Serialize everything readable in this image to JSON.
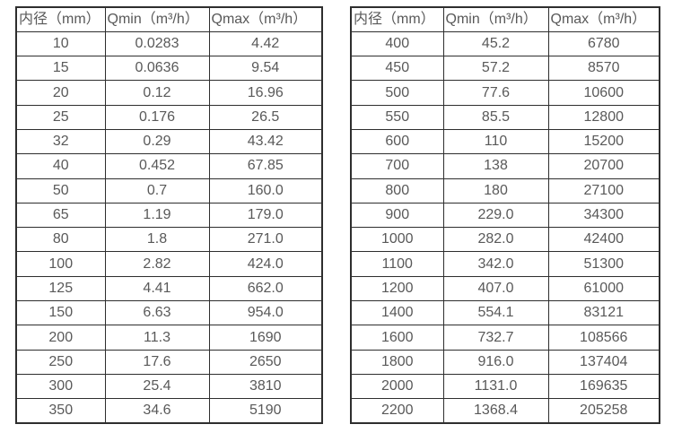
{
  "page": {
    "background": "#ffffff",
    "border_color": "#2e2e2e",
    "text_color": "#595959"
  },
  "tables": [
    {
      "name": "flow-table-small-diameters",
      "headers": [
        "内径（mm）",
        "Qmin（m³/h）",
        "Qmax（m³/h）"
      ],
      "rows": [
        [
          "10",
          "0.0283",
          "4.42"
        ],
        [
          "15",
          "0.0636",
          "9.54"
        ],
        [
          "20",
          "0.12",
          "16.96"
        ],
        [
          "25",
          "0.176",
          "26.5"
        ],
        [
          "32",
          "0.29",
          "43.42"
        ],
        [
          "40",
          "0.452",
          "67.85"
        ],
        [
          "50",
          "0.7",
          "160.0"
        ],
        [
          "65",
          "1.19",
          "179.0"
        ],
        [
          "80",
          "1.8",
          "271.0"
        ],
        [
          "100",
          "2.82",
          "424.0"
        ],
        [
          "125",
          "4.41",
          "662.0"
        ],
        [
          "150",
          "6.63",
          "954.0"
        ],
        [
          "200",
          "11.3",
          "1690"
        ],
        [
          "250",
          "17.6",
          "2650"
        ],
        [
          "300",
          "25.4",
          "3810"
        ],
        [
          "350",
          "34.6",
          "5190"
        ]
      ]
    },
    {
      "name": "flow-table-large-diameters",
      "headers": [
        "内径（mm）",
        "Qmin（m³/h）",
        "Qmax（m³/h）"
      ],
      "rows": [
        [
          "400",
          "45.2",
          "6780"
        ],
        [
          "450",
          "57.2",
          "8570"
        ],
        [
          "500",
          "77.6",
          "10600"
        ],
        [
          "550",
          "85.5",
          "12800"
        ],
        [
          "600",
          "110",
          "15200"
        ],
        [
          "700",
          "138",
          "20700"
        ],
        [
          "800",
          "180",
          "27100"
        ],
        [
          "900",
          "229.0",
          "34300"
        ],
        [
          "1000",
          "282.0",
          "42400"
        ],
        [
          "1100",
          "342.0",
          "51300"
        ],
        [
          "1200",
          "407.0",
          "61000"
        ],
        [
          "1400",
          "554.1",
          "83121"
        ],
        [
          "1600",
          "732.7",
          "108566"
        ],
        [
          "1800",
          "916.0",
          "137404"
        ],
        [
          "2000",
          "1131.0",
          "169635"
        ],
        [
          "2200",
          "1368.4",
          "205258"
        ]
      ]
    }
  ]
}
